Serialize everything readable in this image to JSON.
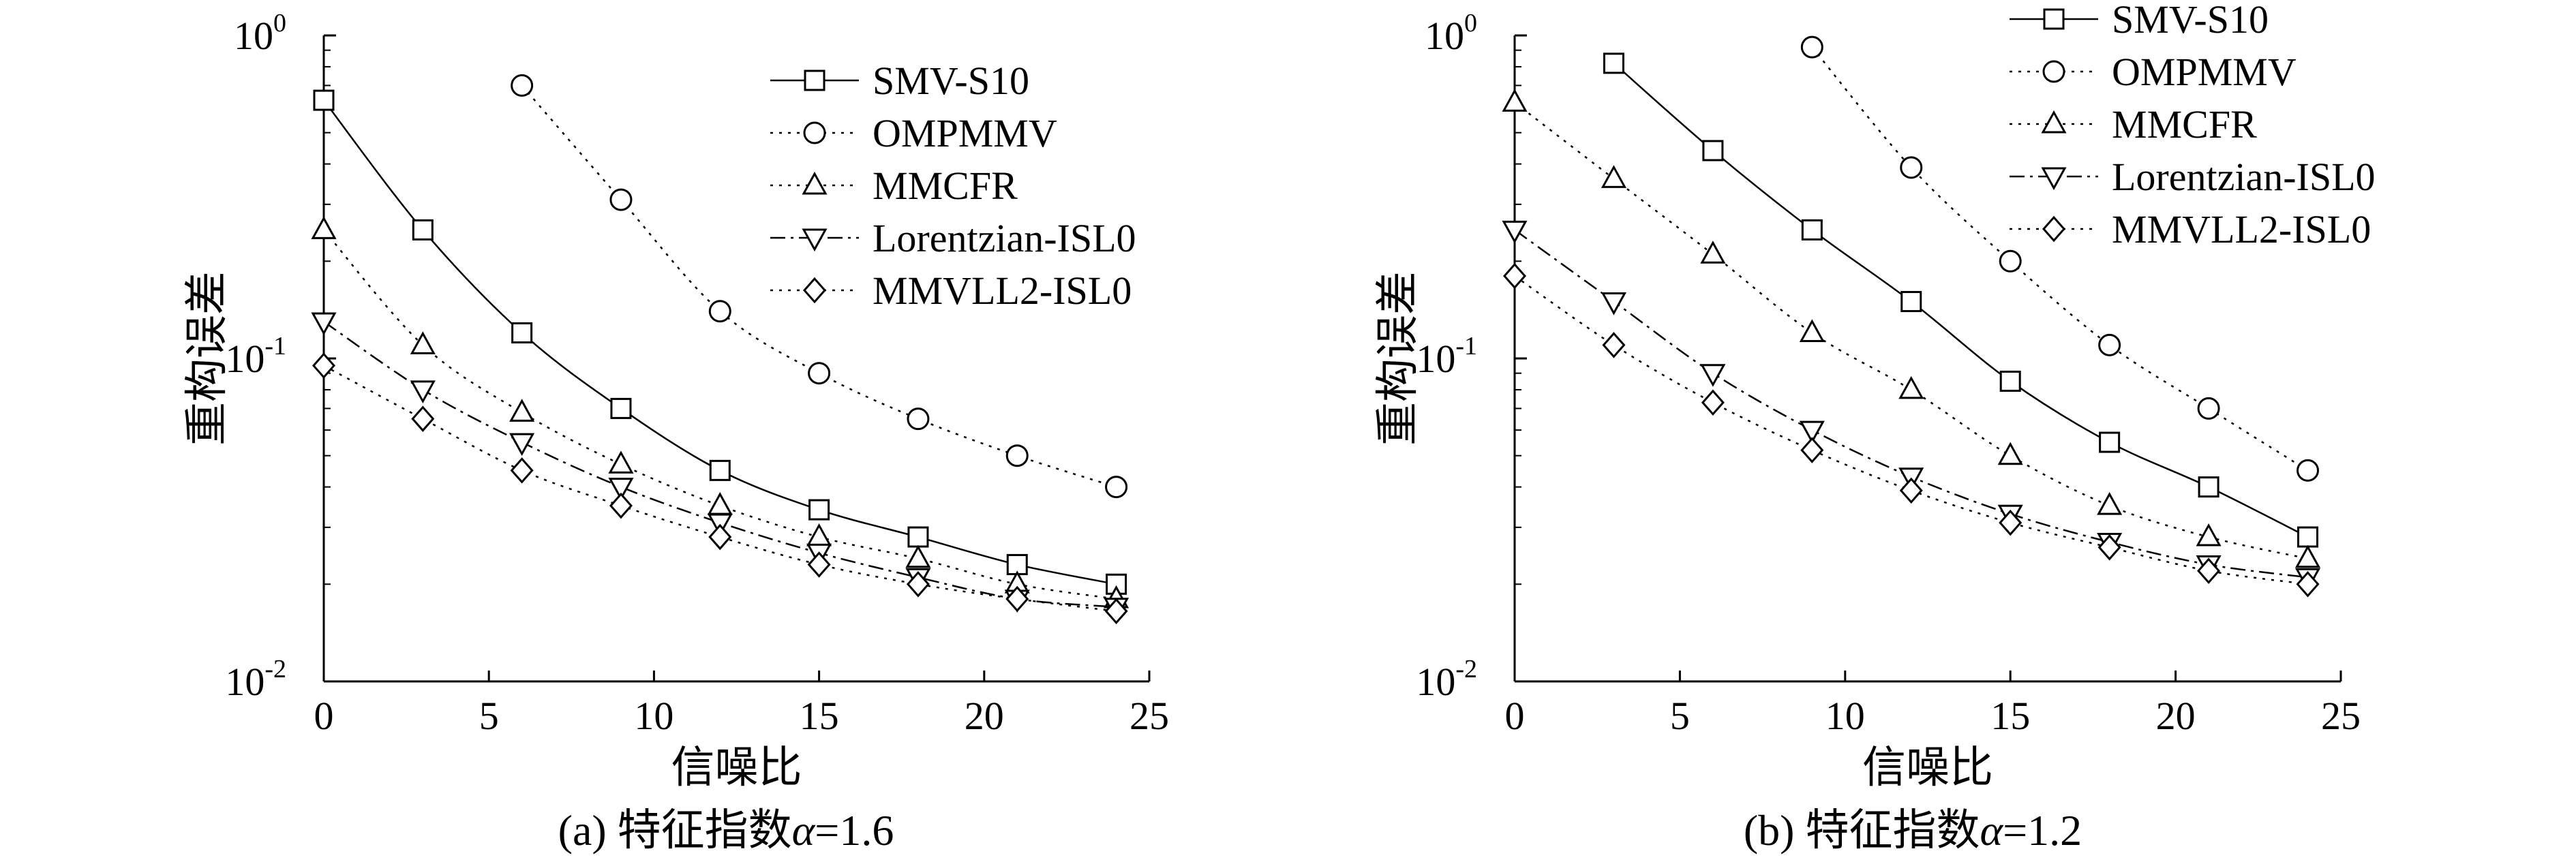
{
  "chart_data": [
    {
      "type": "line",
      "panel_label": "(a) 特征指数α=1.6",
      "caption_prefix": "(a) 特征指数",
      "caption_symbol": "α",
      "caption_suffix": "=1.6",
      "xlabel": "信噪比",
      "ylabel": "重构误差",
      "xlim": [
        0,
        25
      ],
      "ylim": [
        0.01,
        1
      ],
      "y_scale": "log",
      "x_ticks": [
        0,
        5,
        10,
        15,
        20,
        25
      ],
      "x_tick_labels": [
        "0",
        "5",
        "10",
        "15",
        "20",
        "25"
      ],
      "y_ticks": [
        0.01,
        0.1,
        1
      ],
      "y_tick_labels": [
        {
          "base": "10",
          "exp": "-2"
        },
        {
          "base": "10",
          "exp": "-1"
        },
        {
          "base": "10",
          "exp": "0"
        }
      ],
      "grid": false,
      "legend_position": "top-right",
      "series": [
        {
          "name": "SMV-S10",
          "marker": "square",
          "dash": "solid",
          "x": [
            0,
            3,
            6,
            9,
            12,
            15,
            18,
            21,
            24
          ],
          "y": [
            0.63,
            0.25,
            0.12,
            0.07,
            0.045,
            0.034,
            0.028,
            0.023,
            0.02
          ]
        },
        {
          "name": "OMPMMV",
          "marker": "circle",
          "dash": "dotted",
          "x": [
            6,
            9,
            12,
            15,
            18,
            21,
            24
          ],
          "y": [
            0.7,
            0.31,
            0.14,
            0.09,
            0.065,
            0.05,
            0.04
          ]
        },
        {
          "name": "MMCFR",
          "marker": "triangle-up",
          "dash": "dotted",
          "x": [
            0,
            3,
            6,
            9,
            12,
            15,
            18,
            21,
            24
          ],
          "y": [
            0.25,
            0.11,
            0.068,
            0.047,
            0.035,
            0.028,
            0.024,
            0.02,
            0.018
          ]
        },
        {
          "name": "Lorentzian-ISL0",
          "marker": "triangle-down",
          "dash": "dashdot",
          "x": [
            0,
            3,
            6,
            9,
            12,
            15,
            18,
            21,
            24
          ],
          "y": [
            0.13,
            0.08,
            0.055,
            0.04,
            0.031,
            0.025,
            0.021,
            0.018,
            0.017
          ]
        },
        {
          "name": "MMVLL2-ISL0",
          "marker": "diamond",
          "dash": "dotted",
          "x": [
            0,
            3,
            6,
            9,
            12,
            15,
            18,
            21,
            24
          ],
          "y": [
            0.095,
            0.065,
            0.045,
            0.035,
            0.028,
            0.023,
            0.02,
            0.018,
            0.0165
          ]
        }
      ]
    },
    {
      "type": "line",
      "panel_label": "(b) 特征指数α=1.2",
      "caption_prefix": "(b) 特征指数",
      "caption_symbol": "α",
      "caption_suffix": "=1.2",
      "xlabel": "信噪比",
      "ylabel": "重构误差",
      "xlim": [
        0,
        25
      ],
      "ylim": [
        0.01,
        1
      ],
      "y_scale": "log",
      "x_ticks": [
        0,
        5,
        10,
        15,
        20,
        25
      ],
      "x_tick_labels": [
        "0",
        "5",
        "10",
        "15",
        "20",
        "25"
      ],
      "y_ticks": [
        0.01,
        0.1,
        1
      ],
      "y_tick_labels": [
        {
          "base": "10",
          "exp": "-2"
        },
        {
          "base": "10",
          "exp": "-1"
        },
        {
          "base": "10",
          "exp": "0"
        }
      ],
      "grid": false,
      "legend_position": "top-right",
      "series": [
        {
          "name": "SMV-S10",
          "marker": "square",
          "dash": "solid",
          "x": [
            3,
            6,
            9,
            12,
            15,
            18,
            21,
            24
          ],
          "y": [
            0.82,
            0.44,
            0.25,
            0.15,
            0.085,
            0.055,
            0.04,
            0.028
          ]
        },
        {
          "name": "OMPMMV",
          "marker": "circle",
          "dash": "dotted",
          "x": [
            9,
            12,
            15,
            18,
            21,
            24
          ],
          "y": [
            0.92,
            0.39,
            0.2,
            0.11,
            0.07,
            0.045
          ]
        },
        {
          "name": "MMCFR",
          "marker": "triangle-up",
          "dash": "dotted",
          "x": [
            0,
            3,
            6,
            9,
            12,
            15,
            18,
            21,
            24
          ],
          "y": [
            0.62,
            0.36,
            0.21,
            0.12,
            0.08,
            0.05,
            0.035,
            0.028,
            0.024
          ]
        },
        {
          "name": "Lorentzian-ISL0",
          "marker": "triangle-down",
          "dash": "dashdot",
          "x": [
            0,
            3,
            6,
            9,
            12,
            15,
            18,
            21,
            24
          ],
          "y": [
            0.25,
            0.15,
            0.09,
            0.06,
            0.043,
            0.033,
            0.027,
            0.023,
            0.021
          ]
        },
        {
          "name": "MMVLL2-ISL0",
          "marker": "diamond",
          "dash": "dotted",
          "x": [
            0,
            3,
            6,
            9,
            12,
            15,
            18,
            21,
            24
          ],
          "y": [
            0.18,
            0.11,
            0.073,
            0.052,
            0.039,
            0.031,
            0.026,
            0.022,
            0.02
          ]
        }
      ]
    }
  ]
}
